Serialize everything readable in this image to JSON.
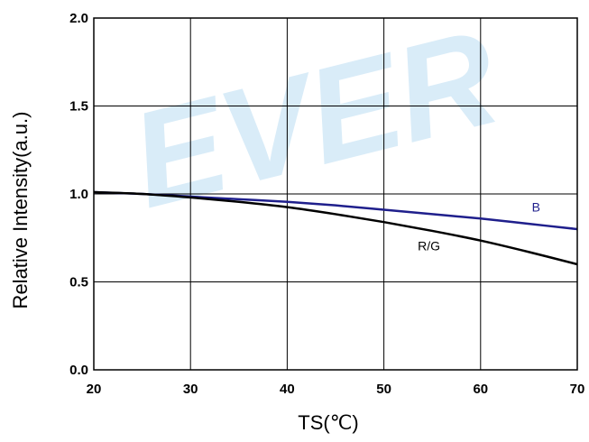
{
  "watermark": {
    "text": "EVER",
    "color": "#d9ecf8"
  },
  "chart_data": {
    "type": "line",
    "xlabel": "TS(℃)",
    "ylabel": "Relative Intensity(a.u.)",
    "xlim": [
      20,
      70
    ],
    "ylim": [
      0.0,
      2.0
    ],
    "x_ticks": [
      "20",
      "30",
      "40",
      "50",
      "60",
      "70"
    ],
    "y_ticks": [
      "0.0",
      "0.5",
      "1.0",
      "1.5",
      "2.0"
    ],
    "grid": true,
    "series": [
      {
        "name": "B",
        "color": "#1f1f8c",
        "x": [
          20,
          25,
          30,
          35,
          40,
          45,
          50,
          55,
          60,
          65,
          70
        ],
        "y": [
          1.01,
          1.0,
          0.985,
          0.97,
          0.955,
          0.935,
          0.91,
          0.885,
          0.86,
          0.83,
          0.8
        ]
      },
      {
        "name": "R/G",
        "color": "#000000",
        "x": [
          20,
          25,
          30,
          35,
          40,
          45,
          50,
          55,
          60,
          65,
          70
        ],
        "y": [
          1.01,
          1.0,
          0.98,
          0.955,
          0.925,
          0.885,
          0.84,
          0.79,
          0.735,
          0.67,
          0.6
        ]
      }
    ]
  }
}
